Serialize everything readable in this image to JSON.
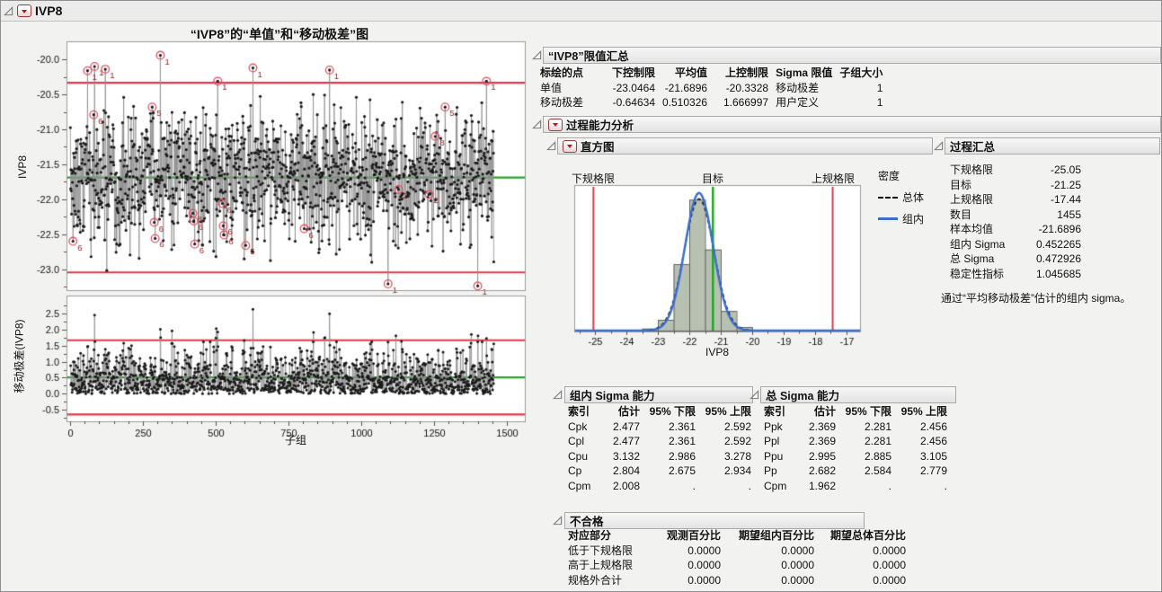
{
  "window": {
    "title": "IVP8"
  },
  "charts": {
    "title": "“IVP8”的“单值”和“移动极差”图",
    "individuals_ylabel": "IVP8",
    "mr_ylabel": "移动极差(IVP8)",
    "xlabel": "子组"
  },
  "chart_data": [
    {
      "name": "individuals",
      "type": "control_chart_individuals",
      "n": 1455,
      "mean": -21.6896,
      "sigma": 0.452265,
      "lcl": -23.0464,
      "cl": -21.6896,
      "ucl": -20.3328,
      "ylim": [
        -23.3,
        -19.74
      ],
      "xlim": [
        0,
        1500
      ],
      "x_ticks": [
        0,
        250,
        500,
        750,
        1000,
        1250,
        1500
      ],
      "y_ticks": [
        -20.0,
        -20.5,
        -21.0,
        -21.5,
        -22.0,
        -22.5,
        -23.0
      ],
      "seed": 911,
      "clip": [
        -23.02,
        -20.5
      ],
      "annotations": [
        {
          "x": 9,
          "v": -22.6,
          "label": "6"
        },
        {
          "x": 59,
          "v": -20.16,
          "label": "1"
        },
        {
          "x": 80,
          "v": -20.79,
          "label": "6"
        },
        {
          "x": 83,
          "v": -20.1,
          "label": "1"
        },
        {
          "x": 120,
          "v": -20.14,
          "label": "1"
        },
        {
          "x": 281,
          "v": -20.68,
          "label": "5"
        },
        {
          "x": 288,
          "v": -22.33,
          "label": "6"
        },
        {
          "x": 291,
          "v": -22.56,
          "label": "6"
        },
        {
          "x": 309,
          "v": -19.94,
          "label": "1"
        },
        {
          "x": 421,
          "v": -22.2,
          "label": "8"
        },
        {
          "x": 424,
          "v": -22.31,
          "label": "6"
        },
        {
          "x": 427,
          "v": -22.64,
          "label": "6"
        },
        {
          "x": 506,
          "v": -20.31,
          "label": "1"
        },
        {
          "x": 522,
          "v": -22.06,
          "label": "6"
        },
        {
          "x": 525,
          "v": -22.38,
          "label": "6"
        },
        {
          "x": 528,
          "v": -22.51,
          "label": "6"
        },
        {
          "x": 602,
          "v": -22.66,
          "label": "5"
        },
        {
          "x": 627,
          "v": -20.12,
          "label": "1"
        },
        {
          "x": 803,
          "v": -22.42,
          "label": "6"
        },
        {
          "x": 890,
          "v": -20.15,
          "label": "1"
        },
        {
          "x": 1091,
          "v": -23.21,
          "label": "1"
        },
        {
          "x": 1127,
          "v": -21.86,
          "label": "2"
        },
        {
          "x": 1232,
          "v": -21.93,
          "label": "2"
        },
        {
          "x": 1253,
          "v": -21.1,
          "label": "8"
        },
        {
          "x": 1287,
          "v": -20.68,
          "label": "5"
        },
        {
          "x": 1399,
          "v": -23.24,
          "label": "1"
        },
        {
          "x": 1429,
          "v": -20.31,
          "label": "1"
        }
      ],
      "helpers": [
        {
          "x": 82,
          "v": -22.55
        },
        {
          "x": 308,
          "v": -21.95
        },
        {
          "x": 626,
          "v": -22.75
        },
        {
          "x": 1090,
          "v": -21.6
        },
        {
          "x": 1398,
          "v": -21.62
        }
      ]
    },
    {
      "name": "moving_range",
      "type": "control_chart_moving_range",
      "lcl": -0.64634,
      "cl": 0.510326,
      "ucl": 1.666997,
      "ylim": [
        -0.86,
        3.06
      ],
      "y_ticks": [
        2.5,
        2.0,
        1.5,
        1.0,
        0.5,
        0.0,
        -0.5
      ],
      "x_ticks": [
        0,
        250,
        500,
        750,
        1000,
        1250,
        1500
      ]
    },
    {
      "name": "histogram",
      "type": "histogram",
      "xlabel": "IVP8",
      "xlim": [
        -25.66,
        -16.57
      ],
      "x_ticks": [
        -25,
        -24,
        -23,
        -22,
        -21,
        -20,
        -19,
        -18,
        -17
      ],
      "bin_start": -23.5,
      "bin_width": 0.5,
      "bin_rel_heights": [
        0.02,
        0.08,
        0.46,
        0.9,
        0.56,
        0.14,
        0.03
      ],
      "lsl": -25.05,
      "target": -21.25,
      "usl": -17.44,
      "curve_within": {
        "mean": -21.6896,
        "sigma": 0.452265
      },
      "curve_overall": {
        "mean": -21.6896,
        "sigma": 0.472926
      },
      "labels": {
        "lsl": "下规格限",
        "target": "目标",
        "usl": "上规格限"
      },
      "legend": {
        "title": "密度",
        "overall": "总体",
        "within": "组内"
      }
    }
  ],
  "limits_summary": {
    "title": "“IVP8”限值汇总",
    "table": {
      "headers": [
        "标绘的点",
        "下控制限",
        "平均值",
        "上控制限",
        "Sigma 限值",
        "子组大小"
      ],
      "aligns": [
        "l",
        "r",
        "r",
        "r",
        "l",
        "r"
      ],
      "rows": [
        [
          "单值",
          "-23.0464",
          "-21.6896",
          "-20.3328",
          "移动极差",
          "1"
        ],
        [
          "移动极差",
          "-0.64634",
          "0.510326",
          "1.666997",
          "用户定义",
          "1"
        ]
      ]
    }
  },
  "capability": {
    "title": "过程能力分析",
    "histogram_title": "直方图",
    "process_summary": {
      "title": "过程汇总",
      "table": {
        "headers": [],
        "aligns": [
          "l",
          "r"
        ],
        "rows": [
          [
            "下规格限",
            "-25.05"
          ],
          [
            "目标",
            "-21.25"
          ],
          [
            "上规格限",
            "-17.44"
          ],
          [
            "数目",
            "1455"
          ],
          [
            "样本均值",
            "-21.6896"
          ],
          [
            "组内 Sigma",
            "0.452265"
          ],
          [
            "总 Sigma",
            "0.472926"
          ],
          [
            "稳定性指标",
            "1.045685"
          ]
        ]
      },
      "note": "通过“平均移动极差”估计的组内 sigma。"
    },
    "within_sigma": {
      "title": "组内 Sigma 能力",
      "table": {
        "headers": [
          "索引",
          "估计",
          "95% 下限",
          "95% 上限"
        ],
        "aligns": [
          "l",
          "r",
          "r",
          "r"
        ],
        "rows": [
          [
            "Cpk",
            "2.477",
            "2.361",
            "2.592"
          ],
          [
            "Cpl",
            "2.477",
            "2.361",
            "2.592"
          ],
          [
            "Cpu",
            "3.132",
            "2.986",
            "3.278"
          ],
          [
            "Cp",
            "2.804",
            "2.675",
            "2.934"
          ],
          [
            "Cpm",
            "2.008",
            ".",
            "."
          ]
        ]
      }
    },
    "overall_sigma": {
      "title": "总 Sigma 能力",
      "table": {
        "headers": [
          "索引",
          "估计",
          "95% 下限",
          "95% 上限"
        ],
        "aligns": [
          "l",
          "r",
          "r",
          "r"
        ],
        "rows": [
          [
            "Ppk",
            "2.369",
            "2.281",
            "2.456"
          ],
          [
            "Ppl",
            "2.369",
            "2.281",
            "2.456"
          ],
          [
            "Ppu",
            "2.995",
            "2.885",
            "3.105"
          ],
          [
            "Pp",
            "2.682",
            "2.584",
            "2.779"
          ],
          [
            "Cpm",
            "1.962",
            ".",
            "."
          ]
        ]
      }
    },
    "nonconformance": {
      "title": "不合格",
      "table": {
        "headers": [
          "对应部分",
          "观测百分比",
          "期望组内百分比",
          "期望总体百分比"
        ],
        "aligns": [
          "l",
          "r",
          "r",
          "r"
        ],
        "rows": [
          [
            "低于下规格限",
            "0.0000",
            "0.0000",
            "0.0000"
          ],
          [
            "高于上规格限",
            "0.0000",
            "0.0000",
            "0.0000"
          ],
          [
            "规格外合计",
            "0.0000",
            "0.0000",
            "0.0000"
          ]
        ]
      }
    }
  },
  "colors": {
    "limit_red": "#e53549",
    "center_green": "#28a428",
    "point": "#1a1a1a",
    "connector": "#8f8f8f",
    "bar_fill": "#b7c1b1",
    "bar_stroke": "#5a5a5a",
    "curve_within": "#3a6ed0",
    "curve_overall": "#111111",
    "annotation": "#e25063",
    "annotation_text": "#8c1a1a"
  }
}
